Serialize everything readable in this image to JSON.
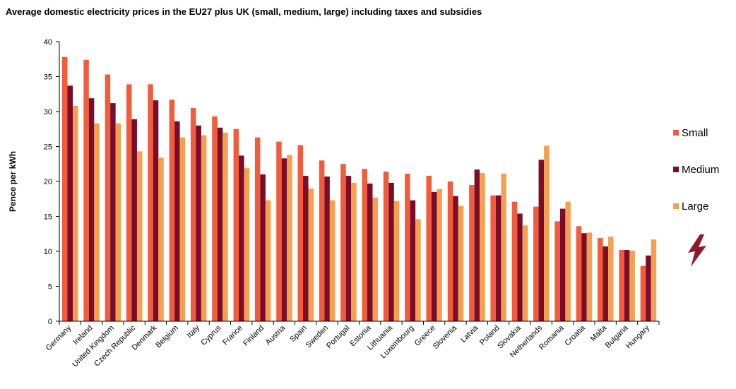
{
  "chart_data": {
    "type": "bar",
    "title": "Average domestic electricity prices in the EU27 plus UK (small, medium, large) including taxes and subsidies",
    "xlabel": "",
    "ylabel": "Pence per kWh",
    "ylim": [
      0,
      40
    ],
    "yticks": [
      0,
      5,
      10,
      15,
      20,
      25,
      30,
      35,
      40
    ],
    "legend_position": "right",
    "categories": [
      "Germany",
      "Ireland",
      "United Kingdom",
      "Czech Republic",
      "Denmark",
      "Belgium",
      "Italy",
      "Cyprus",
      "France",
      "Finland",
      "Austria",
      "Spain",
      "Sweden",
      "Portugal",
      "Estonia",
      "Lithuania",
      "Luxembourg",
      "Greece",
      "Slovenia",
      "Latvia",
      "Poland",
      "Slovakia",
      "Netherlands",
      "Romania",
      "Croatia",
      "Malta",
      "Bulgaria",
      "Hungary"
    ],
    "series": [
      {
        "name": "Small",
        "color": "#f25c3c",
        "values": [
          37.8,
          37.4,
          35.3,
          33.9,
          33.9,
          31.7,
          30.5,
          29.3,
          27.5,
          26.3,
          25.7,
          25.2,
          23.0,
          22.5,
          21.8,
          21.4,
          21.1,
          20.8,
          20.0,
          19.5,
          18.0,
          17.1,
          16.4,
          14.3,
          13.6,
          11.9,
          10.2,
          7.9
        ]
      },
      {
        "name": "Medium",
        "color": "#7a0d2a",
        "values": [
          33.7,
          31.9,
          31.2,
          28.9,
          31.6,
          28.6,
          28.0,
          27.7,
          23.7,
          21.0,
          23.3,
          20.8,
          20.7,
          20.8,
          19.7,
          19.8,
          17.3,
          18.5,
          17.9,
          21.7,
          18.0,
          15.4,
          23.1,
          16.1,
          12.6,
          10.7,
          10.2,
          9.4
        ]
      },
      {
        "name": "Large",
        "color": "#f5a050",
        "values": [
          30.8,
          28.3,
          28.3,
          24.3,
          23.4,
          26.3,
          26.6,
          27.0,
          21.9,
          17.3,
          23.8,
          19.0,
          17.3,
          19.8,
          17.7,
          17.2,
          14.6,
          18.9,
          16.5,
          21.2,
          21.1,
          13.7,
          25.1,
          17.1,
          12.7,
          12.1,
          10.1,
          11.7
        ]
      }
    ]
  },
  "legend": [
    {
      "label": "Small",
      "color": "#f25c3c"
    },
    {
      "label": "Medium",
      "color": "#7a0d2a"
    },
    {
      "label": "Large",
      "color": "#f5a050"
    }
  ],
  "bolt_icon_color": "#8b1a2b"
}
